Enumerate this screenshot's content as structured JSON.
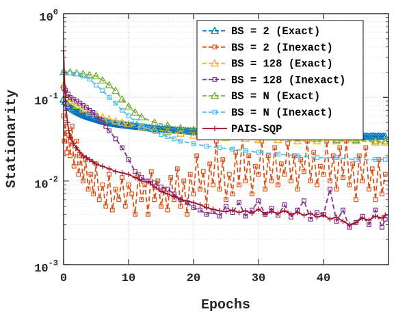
{
  "chart_data": {
    "type": "line",
    "xlabel": "Epochs",
    "ylabel": "Stationarity",
    "x_ticks": [
      "0",
      "10",
      "20",
      "30",
      "40"
    ],
    "y_ticks": [
      {
        "base": "10",
        "exp": "0"
      },
      {
        "base": "10",
        "exp": "-1"
      },
      {
        "base": "10",
        "exp": "-2"
      },
      {
        "base": "10",
        "exp": "-3"
      }
    ],
    "xlim": [
      0,
      50
    ],
    "ylim": [
      0.001,
      1
    ],
    "y_scale": "log",
    "grid": true,
    "legend_position": "top-right",
    "series": [
      {
        "name": "BS = 2 (Exact)",
        "color": "#0072BD",
        "marker": "triangle",
        "dashed": true,
        "dense_markers": true,
        "x": [
          0,
          0.3,
          0.7,
          1.2,
          2,
          3,
          4,
          5,
          6,
          7,
          8,
          9,
          10,
          12,
          14,
          16,
          18,
          20,
          22,
          25,
          28,
          31,
          34,
          37,
          40,
          43,
          46,
          49.5
        ],
        "y": [
          0.095,
          0.088,
          0.08,
          0.074,
          0.068,
          0.062,
          0.058,
          0.055,
          0.052,
          0.05,
          0.048,
          0.047,
          0.046,
          0.044,
          0.042,
          0.041,
          0.04,
          0.039,
          0.038,
          0.037,
          0.036,
          0.036,
          0.035,
          0.035,
          0.034,
          0.034,
          0.034,
          0.034
        ]
      },
      {
        "name": "BS = 2 (Inexact)",
        "color": "#D95319",
        "marker": "square",
        "dashed": true,
        "x": [
          0,
          0.1,
          0.3,
          0.5,
          0.8,
          1.0,
          1.3,
          1.6,
          2.0,
          2.3,
          2.7,
          3.0,
          3.4,
          3.8,
          4.2,
          4.6,
          5.0,
          5.5,
          6.0,
          6.5,
          7.0,
          7.5,
          8.0,
          8.5,
          9.0,
          9.5,
          10.0,
          10.5,
          11.0,
          11.5,
          12.0,
          12.5,
          13.0,
          13.5,
          14.0,
          14.5,
          15.0,
          15.5,
          16.0,
          16.5,
          17.0,
          17.5,
          18.0,
          18.5,
          19.0,
          19.5,
          20.0,
          20.5,
          21.0,
          21.5,
          22.0,
          22.5,
          23.0,
          23.5,
          24.0,
          24.5,
          25.0,
          25.5,
          26.0,
          26.5,
          27.0,
          27.5,
          28.0,
          28.5,
          29.0,
          29.5,
          30.0,
          30.5,
          31.0,
          31.5,
          32.0,
          32.5,
          33.0,
          33.5,
          34.0,
          34.5,
          35.0,
          35.5,
          36.0,
          36.5,
          37.0,
          37.5,
          38.0,
          38.5,
          39.0,
          39.5,
          40.0,
          40.5,
          41.0,
          41.5,
          42.0,
          42.5,
          43.0,
          43.5,
          44.0,
          44.5,
          45.0,
          45.5,
          46.0,
          46.5,
          47.0,
          47.5,
          48.0,
          48.5,
          49.0,
          49.5
        ],
        "y": [
          0.06,
          0.03,
          0.05,
          0.022,
          0.035,
          0.02,
          0.045,
          0.015,
          0.03,
          0.012,
          0.02,
          0.01,
          0.018,
          0.008,
          0.012,
          0.007,
          0.016,
          0.006,
          0.009,
          0.005,
          0.012,
          0.0045,
          0.008,
          0.006,
          0.011,
          0.005,
          0.009,
          0.007,
          0.004,
          0.012,
          0.006,
          0.009,
          0.004,
          0.013,
          0.006,
          0.01,
          0.005,
          0.008,
          0.0045,
          0.011,
          0.006,
          0.014,
          0.005,
          0.01,
          0.004,
          0.012,
          0.007,
          0.02,
          0.008,
          0.013,
          0.005,
          0.016,
          0.009,
          0.03,
          0.008,
          0.018,
          0.006,
          0.012,
          0.007,
          0.022,
          0.009,
          0.035,
          0.01,
          0.02,
          0.007,
          0.015,
          0.012,
          0.03,
          0.008,
          0.02,
          0.01,
          0.025,
          0.009,
          0.016,
          0.012,
          0.028,
          0.01,
          0.02,
          0.008,
          0.018,
          0.013,
          0.03,
          0.01,
          0.022,
          0.009,
          0.015,
          0.012,
          0.03,
          0.01,
          0.02,
          0.008,
          0.025,
          0.011,
          0.03,
          0.009,
          0.016,
          0.006,
          0.02,
          0.01,
          0.025,
          0.008,
          0.014,
          0.006,
          0.018,
          0.007,
          0.012
        ]
      },
      {
        "name": "BS = 128 (Exact)",
        "color": "#EDB120",
        "marker": "triangle",
        "dashed": true,
        "x": [
          0,
          0.5,
          1,
          2,
          3,
          4,
          5,
          6,
          7,
          8,
          9,
          10,
          12,
          14,
          16,
          18,
          20,
          22,
          25,
          28,
          30,
          33,
          36,
          39,
          42,
          45,
          48,
          49.5
        ],
        "y": [
          0.14,
          0.1,
          0.09,
          0.08,
          0.072,
          0.066,
          0.062,
          0.058,
          0.055,
          0.052,
          0.05,
          0.048,
          0.044,
          0.041,
          0.039,
          0.037,
          0.035,
          0.034,
          0.033,
          0.032,
          0.031,
          0.031,
          0.03,
          0.03,
          0.03,
          0.03,
          0.029,
          0.029
        ]
      },
      {
        "name": "BS = 128 (Inexact)",
        "color": "#7E2F8E",
        "marker": "square",
        "dashed": true,
        "x": [
          0,
          0.3,
          0.7,
          1,
          1.5,
          2,
          2.5,
          3,
          3.5,
          4,
          4.5,
          5,
          5.5,
          6,
          6.5,
          7,
          8,
          9,
          10,
          11,
          12,
          13,
          14,
          15,
          16,
          17,
          18,
          19,
          20,
          21,
          22,
          23,
          24,
          25,
          26,
          27,
          28,
          29,
          30,
          31,
          32,
          33,
          34,
          35,
          36,
          37,
          38,
          39,
          40,
          41,
          42,
          43,
          44,
          45,
          46,
          47,
          48,
          49,
          49.5
        ],
        "y": [
          0.13,
          0.12,
          0.11,
          0.1,
          0.095,
          0.09,
          0.085,
          0.08,
          0.076,
          0.07,
          0.066,
          0.06,
          0.055,
          0.05,
          0.045,
          0.04,
          0.032,
          0.025,
          0.018,
          0.013,
          0.011,
          0.01,
          0.0095,
          0.0085,
          0.008,
          0.007,
          0.006,
          0.0055,
          0.0048,
          0.0045,
          0.004,
          0.0043,
          0.0038,
          0.005,
          0.0042,
          0.0055,
          0.0038,
          0.0045,
          0.0058,
          0.004,
          0.0047,
          0.0039,
          0.0052,
          0.0037,
          0.0045,
          0.0058,
          0.0035,
          0.0042,
          0.004,
          0.008,
          0.0033,
          0.0045,
          0.0028,
          0.0032,
          0.0038,
          0.003,
          0.0045,
          0.0028,
          0.0035
        ]
      },
      {
        "name": "BS = N (Exact)",
        "color": "#77AC30",
        "marker": "triangle",
        "dashed": true,
        "x": [
          0,
          1,
          2,
          3,
          4,
          5,
          6,
          7,
          8,
          9,
          10,
          11,
          12,
          14,
          16,
          18,
          20,
          22,
          25,
          28,
          30,
          33,
          36,
          39,
          42,
          45,
          48,
          49.5
        ],
        "y": [
          0.2,
          0.2,
          0.195,
          0.19,
          0.185,
          0.18,
          0.16,
          0.14,
          0.12,
          0.095,
          0.078,
          0.066,
          0.058,
          0.05,
          0.046,
          0.043,
          0.041,
          0.039,
          0.037,
          0.036,
          0.035,
          0.034,
          0.033,
          0.032,
          0.031,
          0.031,
          0.03,
          0.03
        ]
      },
      {
        "name": "BS = N (Inexact)",
        "color": "#4DBEEE",
        "marker": "square",
        "dashed": true,
        "x": [
          0,
          1,
          2,
          3,
          4,
          5,
          6,
          7,
          8,
          9,
          10,
          11,
          12,
          13,
          14,
          15,
          16,
          17,
          18,
          20,
          22,
          24,
          26,
          28,
          30,
          33,
          36,
          39,
          42,
          45,
          48,
          49.5
        ],
        "y": [
          0.2,
          0.195,
          0.19,
          0.18,
          0.165,
          0.14,
          0.12,
          0.1,
          0.085,
          0.07,
          0.06,
          0.052,
          0.046,
          0.042,
          0.039,
          0.036,
          0.034,
          0.032,
          0.03,
          0.028,
          0.026,
          0.025,
          0.024,
          0.023,
          0.022,
          0.021,
          0.02,
          0.019,
          0.019,
          0.018,
          0.018,
          0.018
        ]
      },
      {
        "name": "PAIS-SQP",
        "color": "#A2142F",
        "marker": "plus",
        "dashed": false,
        "x": [
          0,
          0.1,
          0.2,
          0.4,
          0.6,
          0.8,
          1,
          1.5,
          2,
          2.5,
          3,
          3.5,
          4,
          4.5,
          5,
          6,
          7,
          8,
          9,
          10,
          11,
          12,
          13,
          14,
          15,
          16,
          17,
          18,
          19,
          20,
          21,
          22,
          23,
          24,
          25,
          26,
          27,
          28,
          29,
          30,
          31,
          32,
          33,
          34,
          35,
          36,
          37,
          38,
          39,
          40,
          41,
          42,
          43,
          44,
          45,
          46,
          47,
          48,
          49,
          49.5
        ],
        "y": [
          0.36,
          0.2,
          0.12,
          0.07,
          0.05,
          0.04,
          0.033,
          0.028,
          0.025,
          0.022,
          0.02,
          0.019,
          0.018,
          0.017,
          0.016,
          0.015,
          0.014,
          0.013,
          0.0125,
          0.012,
          0.011,
          0.01,
          0.0098,
          0.0085,
          0.0075,
          0.007,
          0.0065,
          0.006,
          0.0058,
          0.0055,
          0.0052,
          0.0048,
          0.0046,
          0.0044,
          0.0043,
          0.0045,
          0.0042,
          0.0044,
          0.0041,
          0.0046,
          0.004,
          0.0043,
          0.0041,
          0.0044,
          0.004,
          0.0042,
          0.0039,
          0.0041,
          0.0037,
          0.0039,
          0.0035,
          0.0037,
          0.0033,
          0.003,
          0.0032,
          0.0036,
          0.0034,
          0.0038,
          0.0036,
          0.0039
        ]
      }
    ]
  }
}
